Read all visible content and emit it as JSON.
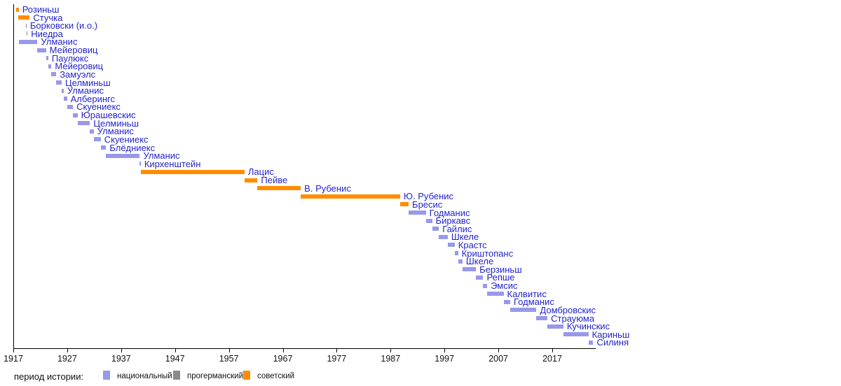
{
  "chart_data": {
    "type": "bar",
    "variant": "horizontal-timeline-gantt",
    "title": "",
    "xlabel": "",
    "ylabel": "",
    "grid": false,
    "x_axis": {
      "min": 1917,
      "max": 2025,
      "ticks": [
        1917,
        1927,
        1937,
        1947,
        1957,
        1967,
        1977,
        1987,
        1997,
        2007,
        2017
      ]
    },
    "colors": {
      "national": "#9898ea",
      "german": "#8a8a8a",
      "soviet": "#ff8c00",
      "label_text": "#2323cd",
      "axis_text": "#111111"
    },
    "legend": {
      "position": "bottom",
      "label": "период истории:",
      "items": [
        {
          "label": "национальный",
          "period": "national",
          "color": "#9898ea"
        },
        {
          "label": "прогерманский",
          "period": "german",
          "color": "#8a8a8a"
        },
        {
          "label": "советский",
          "period": "soviet",
          "color": "#ff8c00"
        }
      ]
    },
    "series": [
      {
        "name": "Розиньш",
        "from": 1917.58,
        "till": 1918.0,
        "period": "soviet"
      },
      {
        "name": "Стучка",
        "from": 1917.95,
        "till": 1920.04,
        "period": "soviet"
      },
      {
        "name": "Борковски (и.о.)",
        "from": 1919.29,
        "till": 1919.45,
        "period": "german"
      },
      {
        "name": "Ниедра",
        "from": 1919.45,
        "till": 1919.63,
        "period": "german"
      },
      {
        "name": "Улманис",
        "from": 1918.0,
        "till": 1921.47,
        "period": "national"
      },
      {
        "name": "Мейеровиц",
        "from": 1921.47,
        "till": 1923.07,
        "period": "national"
      },
      {
        "name": "Паулюкс",
        "from": 1923.07,
        "till": 1923.49,
        "period": "national"
      },
      {
        "name": "Мейеровиц",
        "from": 1923.49,
        "till": 1924.07,
        "period": "national"
      },
      {
        "name": "Замуэлс",
        "from": 1924.07,
        "till": 1924.96,
        "period": "national"
      },
      {
        "name": "Целминьш",
        "from": 1924.96,
        "till": 1925.98,
        "period": "national"
      },
      {
        "name": "Улманис",
        "from": 1925.98,
        "till": 1926.35,
        "period": "national"
      },
      {
        "name": "Алберингс",
        "from": 1926.35,
        "till": 1926.96,
        "period": "national"
      },
      {
        "name": "Скуениекс",
        "from": 1926.96,
        "till": 1928.07,
        "period": "national"
      },
      {
        "name": "Юрашевскис",
        "from": 1928.07,
        "till": 1928.92,
        "period": "national"
      },
      {
        "name": "Целминьш",
        "from": 1928.92,
        "till": 1931.23,
        "period": "national"
      },
      {
        "name": "Улманис",
        "from": 1931.23,
        "till": 1931.93,
        "period": "national"
      },
      {
        "name": "Скуениекс",
        "from": 1931.93,
        "till": 1933.22,
        "period": "national"
      },
      {
        "name": "Блёдниекс",
        "from": 1933.22,
        "till": 1934.21,
        "period": "national"
      },
      {
        "name": "Улманис",
        "from": 1934.21,
        "till": 1940.47,
        "period": "national"
      },
      {
        "name": "Кирхенштейн",
        "from": 1940.47,
        "till": 1940.65,
        "period": "national"
      },
      {
        "name": "Лацис",
        "from": 1940.65,
        "till": 1959.9,
        "period": "soviet"
      },
      {
        "name": "Пейве",
        "from": 1959.9,
        "till": 1962.31,
        "period": "soviet"
      },
      {
        "name": "В. Рубенис",
        "from": 1962.31,
        "till": 1970.34,
        "period": "soviet"
      },
      {
        "name": "Ю. Рубенис",
        "from": 1970.34,
        "till": 1988.77,
        "period": "soviet"
      },
      {
        "name": "Бресис",
        "from": 1988.77,
        "till": 1990.35,
        "period": "soviet"
      },
      {
        "name": "Годманис",
        "from": 1990.35,
        "till": 1993.55,
        "period": "national"
      },
      {
        "name": "Биркавс",
        "from": 1993.55,
        "till": 1994.71,
        "period": "national"
      },
      {
        "name": "Гайлис",
        "from": 1994.71,
        "till": 1995.97,
        "period": "national"
      },
      {
        "name": "Шкеле",
        "from": 1995.97,
        "till": 1997.6,
        "period": "national"
      },
      {
        "name": "Крастс",
        "from": 1997.6,
        "till": 1998.9,
        "period": "national"
      },
      {
        "name": "Криштопанс",
        "from": 1998.9,
        "till": 1999.54,
        "period": "national"
      },
      {
        "name": "Шкеле",
        "from": 1999.54,
        "till": 2000.34,
        "period": "national"
      },
      {
        "name": "Берзиньш",
        "from": 2000.34,
        "till": 2002.85,
        "period": "national"
      },
      {
        "name": "Репше",
        "from": 2002.85,
        "till": 2004.19,
        "period": "national"
      },
      {
        "name": "Эмсис",
        "from": 2004.19,
        "till": 2004.92,
        "period": "national"
      },
      {
        "name": "Калвитис",
        "from": 2004.92,
        "till": 2007.97,
        "period": "national"
      },
      {
        "name": "Годманис",
        "from": 2007.97,
        "till": 2009.2,
        "period": "national"
      },
      {
        "name": "Домбровскис",
        "from": 2009.2,
        "till": 2014.06,
        "period": "national"
      },
      {
        "name": "Страуюма",
        "from": 2014.06,
        "till": 2016.11,
        "period": "national"
      },
      {
        "name": "Кучинскис",
        "from": 2016.11,
        "till": 2019.06,
        "period": "national"
      },
      {
        "name": "Кариньш",
        "from": 2019.06,
        "till": 2023.71,
        "period": "national"
      },
      {
        "name": "Силиня",
        "from": 2023.71,
        "till": 2024.6,
        "period": "national"
      }
    ]
  }
}
